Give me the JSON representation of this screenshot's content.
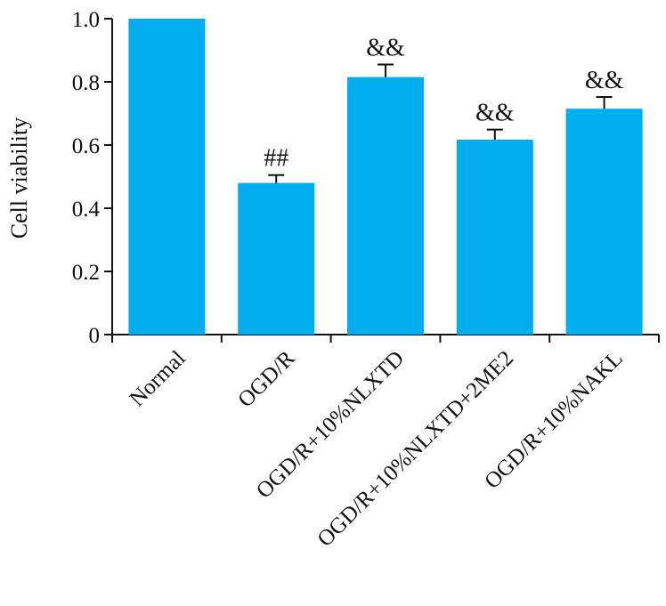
{
  "chart_data": {
    "type": "bar",
    "title": "",
    "xlabel": "",
    "ylabel": "Cell viability",
    "ylim": [
      0,
      1.0
    ],
    "yticks": [
      "0",
      "0.2",
      "0.4",
      "0.6",
      "0.8",
      "1.0"
    ],
    "categories": [
      "Normal",
      "OGD/R",
      "OGD/R+10%NLXTD",
      "OGD/R+10%NLXTD+2ME2",
      "OGD/R+10%NAKL"
    ],
    "values": [
      1.0,
      0.48,
      0.815,
      0.617,
      0.715
    ],
    "errors": [
      0.0,
      0.025,
      0.04,
      0.032,
      0.037
    ],
    "annotations": [
      "",
      "##",
      "&&",
      "&&",
      "&&"
    ],
    "bar_color": "#00aeef",
    "grid": false
  }
}
